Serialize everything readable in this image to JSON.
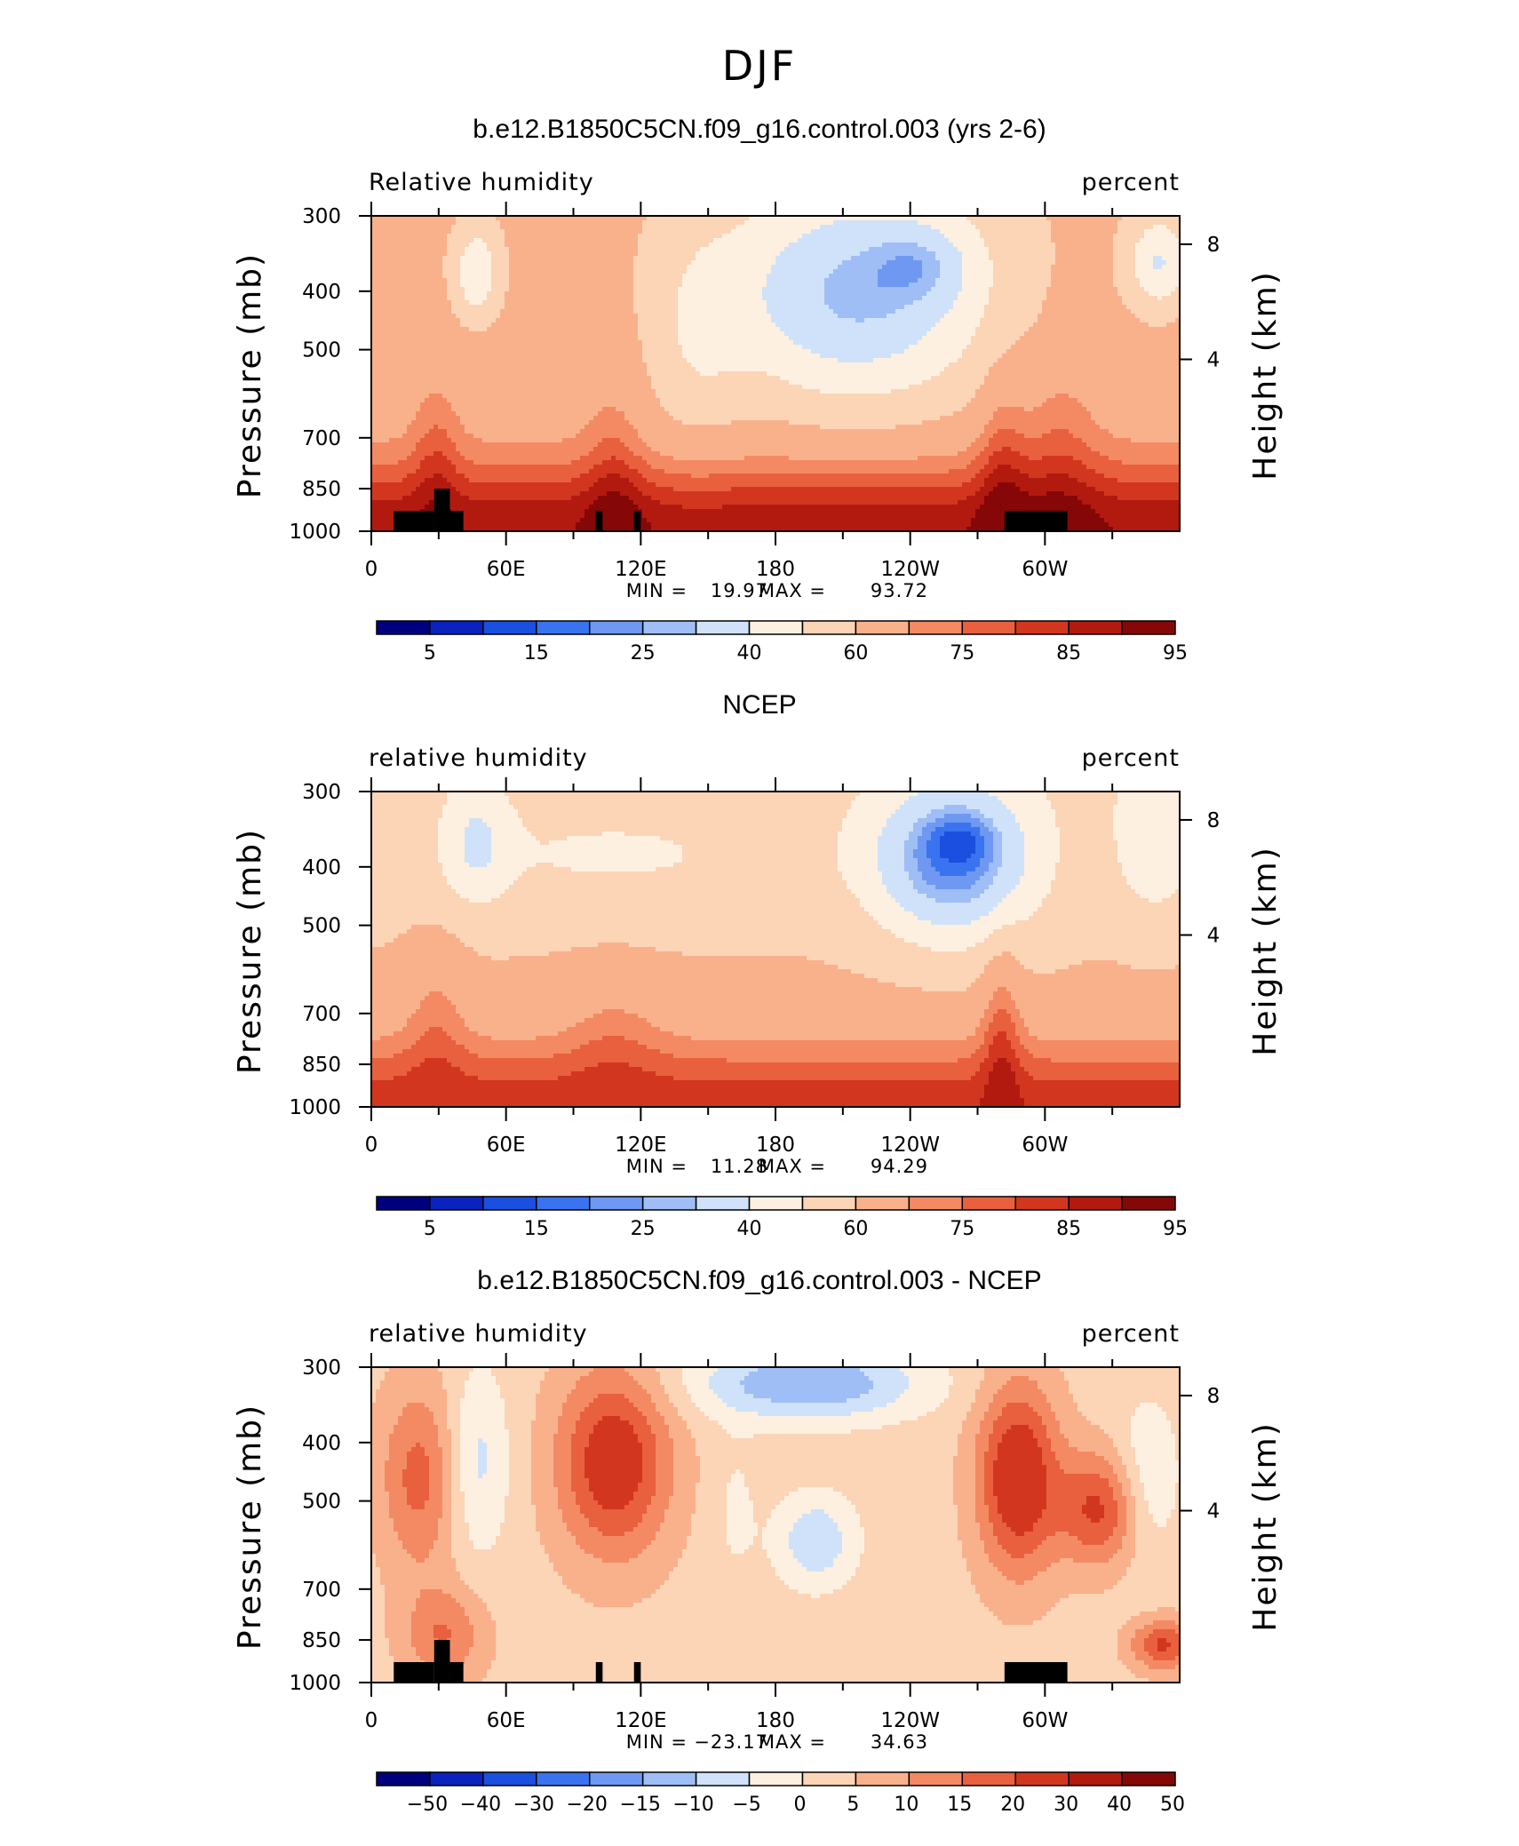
{
  "page_title": "DJF",
  "colors": {
    "rh_scale": [
      "#00007f",
      "#0a23bf",
      "#1a4fdf",
      "#3a73ef",
      "#6e98f2",
      "#9fbef5",
      "#cfe2fa",
      "#fdf0e0",
      "#fcd4b6",
      "#f9b18c",
      "#f38a63",
      "#e8603e",
      "#d3361f",
      "#b21a10",
      "#860707"
    ],
    "diff_scale": [
      "#00007f",
      "#0a23bf",
      "#1a4fdf",
      "#3a73ef",
      "#6e98f2",
      "#9fbef5",
      "#cfe2fa",
      "#fdf0e0",
      "#fcd4b6",
      "#f9b18c",
      "#f38a63",
      "#e8603e",
      "#d3361f",
      "#b21a10",
      "#860707"
    ],
    "topography": "#000000"
  },
  "chart_data": [
    {
      "type": "heatmap",
      "title": "b.e12.B1850C5CN.f09_g16.control.003 (yrs 2-6)",
      "left_label": "Relative humidity",
      "right_label": "percent",
      "xlabel": "",
      "ylabel": "Pressure (mb)",
      "y2label": "Height (km)",
      "x_tick_labels": [
        "0",
        "60E",
        "120E",
        "180",
        "120W",
        "60W"
      ],
      "y_tick_labels": [
        "300",
        "400",
        "500",
        "700",
        "850",
        "1000"
      ],
      "y2_tick_labels": [
        "8",
        "4"
      ],
      "stats": {
        "min_label": "MIN =",
        "min": "19.97",
        "max_label": "MAX =",
        "max": "93.72"
      },
      "colorbar_labels": [
        "5",
        "15",
        "25",
        "40",
        "60",
        "75",
        "85",
        "95"
      ]
    },
    {
      "type": "heatmap",
      "title": "NCEP",
      "left_label": "relative humidity",
      "right_label": "percent",
      "xlabel": "",
      "ylabel": "Pressure (mb)",
      "y2label": "Height (km)",
      "x_tick_labels": [
        "0",
        "60E",
        "120E",
        "180",
        "120W",
        "60W"
      ],
      "y_tick_labels": [
        "300",
        "400",
        "500",
        "700",
        "850",
        "1000"
      ],
      "y2_tick_labels": [
        "8",
        "4"
      ],
      "stats": {
        "min_label": "MIN =",
        "min": "11.28",
        "max_label": "MAX =",
        "max": "94.29"
      },
      "colorbar_labels": [
        "5",
        "15",
        "25",
        "40",
        "60",
        "75",
        "85",
        "95"
      ]
    },
    {
      "type": "heatmap",
      "title": "b.e12.B1850C5CN.f09_g16.control.003 - NCEP",
      "left_label": "relative humidity",
      "right_label": "percent",
      "xlabel": "",
      "ylabel": "Pressure (mb)",
      "y2label": "Height (km)",
      "x_tick_labels": [
        "0",
        "60E",
        "120E",
        "180",
        "120W",
        "60W"
      ],
      "y_tick_labels": [
        "300",
        "400",
        "500",
        "700",
        "850",
        "1000"
      ],
      "y2_tick_labels": [
        "8",
        "4"
      ],
      "stats": {
        "min_label": "MIN =",
        "min": "−23.17",
        "max_label": "MAX =",
        "max": "34.63"
      },
      "colorbar_labels": [
        "−50",
        "−40",
        "−30",
        "−20",
        "−15",
        "−10",
        "−5",
        "0",
        "5",
        "10",
        "15",
        "20",
        "30",
        "40",
        "50"
      ]
    }
  ]
}
